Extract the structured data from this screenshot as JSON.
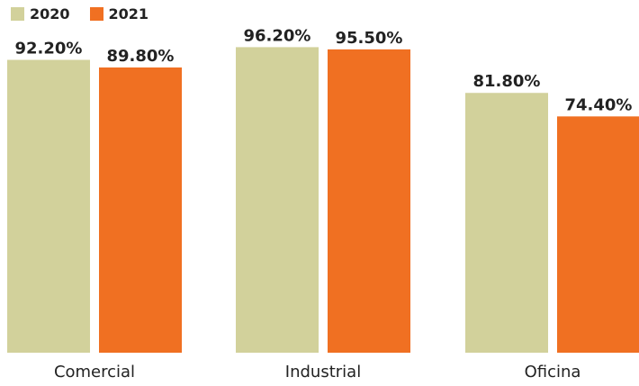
{
  "chart_data": {
    "type": "bar",
    "categories": [
      "Comercial",
      "Industrial",
      "Oficina"
    ],
    "series": [
      {
        "name": "2020",
        "color": "#d2d19b",
        "values": [
          92.2,
          96.2,
          81.8
        ],
        "labels": [
          "92.20%",
          "96.20%",
          "81.80%"
        ]
      },
      {
        "name": "2021",
        "color": "#f07022",
        "values": [
          89.8,
          95.5,
          74.4
        ],
        "labels": [
          "89.80%",
          "95.50%",
          "74.40%"
        ]
      }
    ],
    "title": "",
    "xlabel": "",
    "ylabel": "",
    "ylim": [
      0,
      100
    ],
    "legend": "top-left",
    "grid": false
  }
}
